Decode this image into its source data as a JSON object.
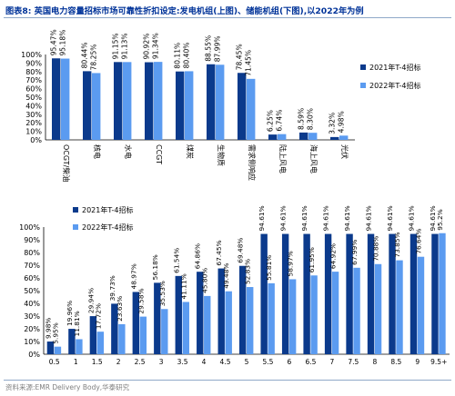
{
  "title": "图表8:  英国电力容量招标市场可靠性折扣设定:发电机组(上图)、储能机组(下图),以2022年为例",
  "source": "资料来源:EMR Delivery Body,华泰研究",
  "colors": {
    "series_2021": "#0b3a8c",
    "series_2022": "#5b9bf0",
    "title": "#003399"
  },
  "chart_data": [
    {
      "type": "bar",
      "categories": [
        "OCGT/柴油",
        "核电",
        "水电",
        "CCGT",
        "煤炭",
        "生物质",
        "需求侧响应",
        "陆上风电",
        "海上风电",
        "光伏"
      ],
      "series": [
        {
          "name": "2021年T-4招标",
          "values": [
            95.47,
            80.44,
            91.15,
            90.92,
            80.11,
            88.55,
            78.45,
            6.25,
            8.59,
            3.32
          ],
          "labels": [
            "95.47%",
            "80.44%",
            "91.15%",
            "90.92%",
            "80.11%",
            "88.55%",
            "78.45%",
            "6.25%",
            "8.59%",
            "3.32%"
          ]
        },
        {
          "name": "2022年T-4招标",
          "values": [
            95.18,
            78.25,
            91.13,
            91.34,
            80.4,
            87.99,
            71.45,
            6.74,
            8.3,
            4.98
          ],
          "labels": [
            "95.18%",
            "78.25%",
            "91.13%",
            "91.34%",
            "80.40%",
            "87.99%",
            "71.45%",
            "6.74%",
            "8.30%",
            "4.98%"
          ]
        }
      ],
      "yticks": [
        "0%",
        "10%",
        "20%",
        "30%",
        "40%",
        "50%",
        "60%",
        "70%",
        "80%",
        "90%",
        "100%"
      ],
      "ylim": [
        0,
        100
      ],
      "legend": "right"
    },
    {
      "type": "bar",
      "categories": [
        "0.5",
        "1",
        "1.5",
        "2",
        "2.5",
        "3",
        "3.5",
        "4",
        "4.5",
        "5",
        "5.5",
        "6",
        "6.5",
        "7",
        "7.5",
        "8",
        "8.5",
        "9",
        "9.5+"
      ],
      "series": [
        {
          "name": "2021年T-4招标",
          "values": [
            9.98,
            19.96,
            29.94,
            39.73,
            48.97,
            56.18,
            61.54,
            64.86,
            67.45,
            69.48,
            94.61,
            94.61,
            94.61,
            94.61,
            94.61,
            94.61,
            94.61,
            94.61,
            94.61
          ],
          "labels": [
            "9.98%",
            "19.96%",
            "29.94%",
            "39.73%",
            "48.97%",
            "56.18%",
            "61.54%",
            "64.86%",
            "67.45%",
            "69.48%",
            "94.61%",
            "94.61%",
            "94.61%",
            "94.61%",
            "94.61%",
            "94.61%",
            "94.61%",
            "94.61%",
            "94.61%"
          ]
        },
        {
          "name": "2022年T-4招标",
          "values": [
            5.95,
            11.81,
            17.72,
            23.63,
            29.58,
            35.53,
            41.11,
            45.8,
            49.48,
            52.83,
            55.81,
            58.97,
            61.95,
            64.92,
            67.99,
            70.88,
            73.85,
            76.64,
            95.2
          ],
          "labels": [
            "5.95%",
            "11.81%",
            "17.72%",
            "23.63%",
            "29.58%",
            "35.53%",
            "41.11%",
            "45.80%",
            "49.48%",
            "52.83%",
            "55.81%",
            "58.97%",
            "61.95%",
            "64.92%",
            "67.99%",
            "70.88%",
            "73.85%",
            "76.64%",
            "95.2%"
          ]
        }
      ],
      "yticks": [
        "0%",
        "10%",
        "20%",
        "30%",
        "40%",
        "50%",
        "60%",
        "70%",
        "80%",
        "90%",
        "100%"
      ],
      "ylim": [
        0,
        100
      ],
      "legend": "top-left"
    }
  ]
}
